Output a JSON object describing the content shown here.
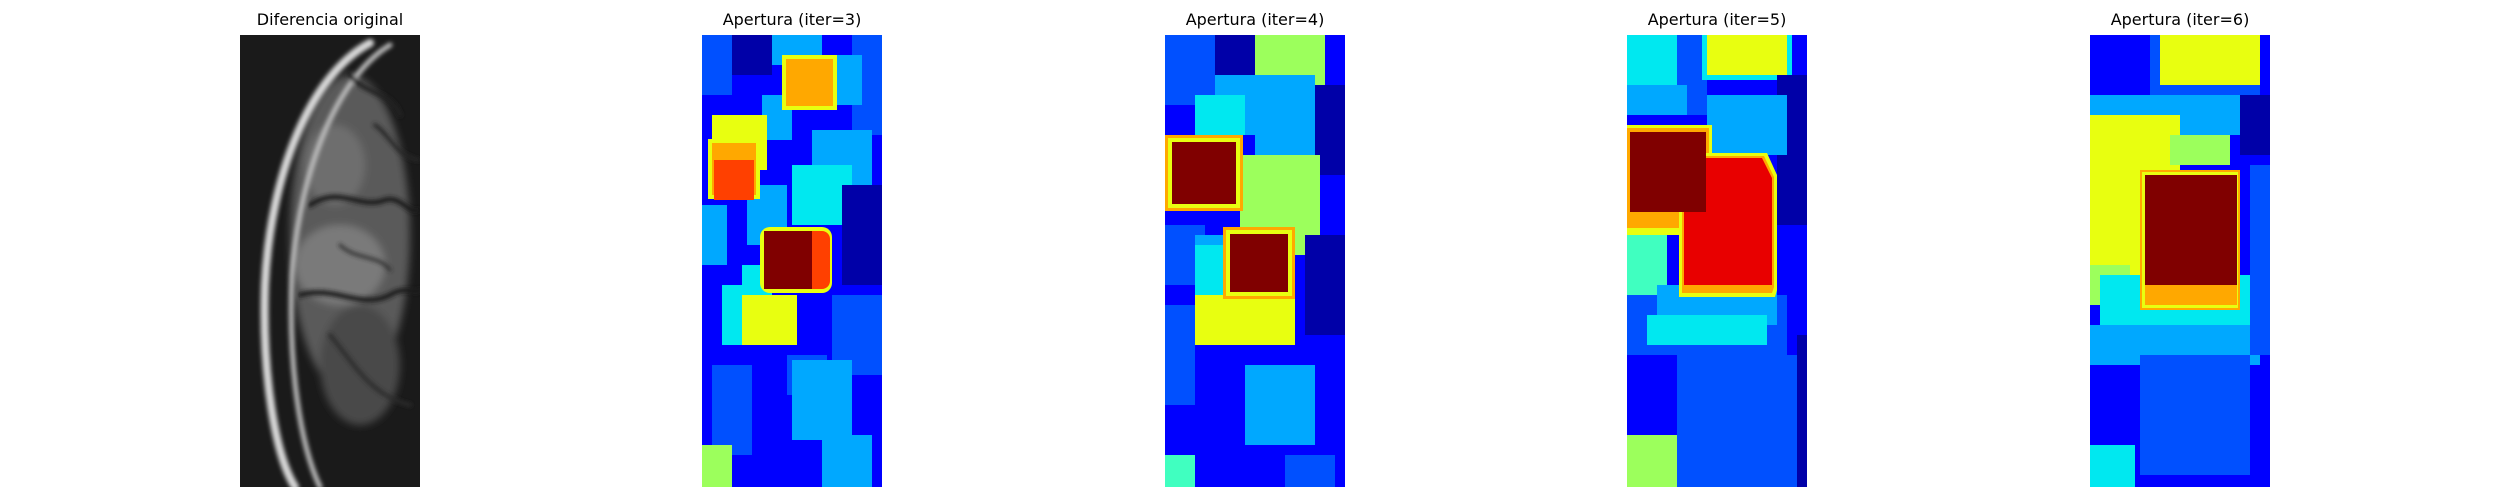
{
  "panels": [
    {
      "id": "original",
      "title": "Diferencia original"
    },
    {
      "id": "iter3",
      "title": "Apertura (iter=3)"
    },
    {
      "id": "iter4",
      "title": "Apertura (iter=4)"
    },
    {
      "id": "iter5",
      "title": "Apertura (iter=5)"
    },
    {
      "id": "iter6",
      "title": "Apertura (iter=6)"
    }
  ],
  "colors": {
    "jet_dark_blue": "#0000a8",
    "jet_blue": "#0000ff",
    "jet_mid_blue": "#0050ff",
    "jet_light_blue": "#00a8ff",
    "jet_cyan": "#00e8f0",
    "jet_aqua": "#40ffc0",
    "jet_green": "#9cff5c",
    "jet_yellow": "#e8ff10",
    "jet_orange": "#ffa800",
    "jet_red_orange": "#ff4000",
    "jet_red": "#e80000",
    "jet_dark_red": "#800000"
  }
}
